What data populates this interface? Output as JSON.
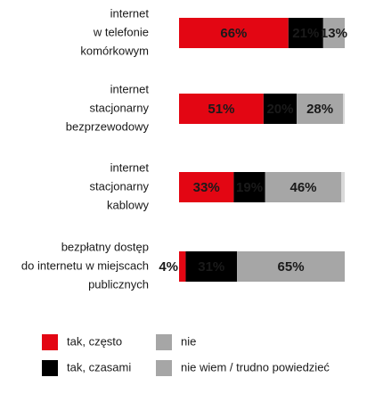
{
  "chart_data": {
    "type": "stacked-bar-horizontal",
    "categories": [
      [
        "internet",
        "w telefonie",
        "komórkowym"
      ],
      [
        "internet",
        "stacjonarny",
        "bezprzewodowy"
      ],
      [
        "internet",
        "stacjonarny",
        "kablowy"
      ],
      [
        "bezpłatny dostęp",
        "do internetu w miejscach",
        "publicznych"
      ]
    ],
    "xlim": [
      0,
      100
    ],
    "series": [
      {
        "name": "tak, często",
        "color": "#e30613",
        "label_color": "#ffffff",
        "values": [
          66,
          51,
          33,
          4
        ],
        "value_labels": [
          "66%",
          "51%",
          "33%",
          "4%"
        ]
      },
      {
        "name": "tak, czasami",
        "color": "#000000",
        "label_color": "#ffffff",
        "values": [
          21,
          20,
          19,
          31
        ],
        "value_labels": [
          "21%",
          "20%",
          "19%",
          "31%"
        ]
      },
      {
        "name": "nie",
        "color": "#a6a6a6",
        "label_color": "#000000",
        "values": [
          13,
          28,
          46,
          65
        ],
        "value_labels": [
          "13%",
          "28%",
          "46%",
          "65%"
        ]
      },
      {
        "name": "nie wiem / trudno powiedzieć",
        "color": "#d9d9d9",
        "values": [
          0,
          1,
          2,
          0
        ]
      }
    ]
  }
}
